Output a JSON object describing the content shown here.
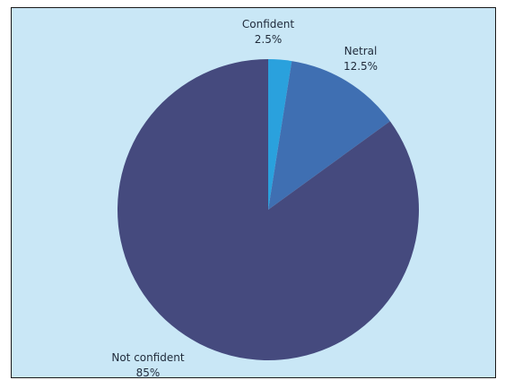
{
  "chart_data": {
    "type": "pie",
    "title": "",
    "legend": "none",
    "slices": [
      {
        "label": "Confident",
        "value": 2.5,
        "value_label": "2.5%",
        "color": "#2aa1dd"
      },
      {
        "label": "Netral",
        "value": 12.5,
        "value_label": "12.5%",
        "color": "#3f6fb2"
      },
      {
        "label": "Not confident",
        "value": 85,
        "value_label": "85%",
        "color": "#454a7e"
      }
    ]
  }
}
